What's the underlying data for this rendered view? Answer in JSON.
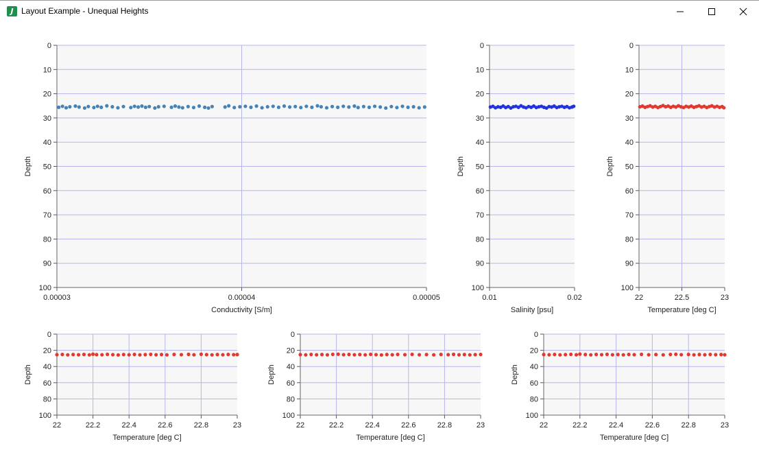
{
  "window": {
    "title": "Layout Example - Unequal Heights",
    "icon": "java-app-icon",
    "controls": [
      "minimize",
      "maximize",
      "close"
    ]
  },
  "chart_data": [
    {
      "type": "scatter",
      "xlabel": "Conductivity [S/m]",
      "ylabel": "Depth",
      "xlim": [
        3e-05,
        5e-05
      ],
      "ylim": [
        0,
        100
      ],
      "y_inverted": true,
      "xticks": [
        "0.00003",
        "0.00004",
        "0.00005"
      ],
      "yticks": [
        "0",
        "10",
        "20",
        "30",
        "40",
        "50",
        "60",
        "70",
        "80",
        "90",
        "100"
      ],
      "grid": true,
      "color": "#4682b4",
      "points": [
        [
          3.01e-05,
          25.6
        ],
        [
          3.03e-05,
          25.2
        ],
        [
          3.05e-05,
          25.8
        ],
        [
          3.07e-05,
          25.4
        ],
        [
          3.1e-05,
          25.1
        ],
        [
          3.12e-05,
          25.5
        ],
        [
          3.15e-05,
          25.9
        ],
        [
          3.17e-05,
          25.3
        ],
        [
          3.2e-05,
          25.7
        ],
        [
          3.22e-05,
          25.2
        ],
        [
          3.24e-05,
          25.6
        ],
        [
          3.27e-05,
          25.0
        ],
        [
          3.3e-05,
          25.4
        ],
        [
          3.33e-05,
          25.8
        ],
        [
          3.36e-05,
          25.3
        ],
        [
          3.4e-05,
          25.7
        ],
        [
          3.42e-05,
          25.2
        ],
        [
          3.44e-05,
          25.5
        ],
        [
          3.46e-05,
          25.1
        ],
        [
          3.48e-05,
          25.6
        ],
        [
          3.5e-05,
          25.3
        ],
        [
          3.53e-05,
          25.9
        ],
        [
          3.55e-05,
          25.4
        ],
        [
          3.58e-05,
          25.2
        ],
        [
          3.62e-05,
          25.6
        ],
        [
          3.64e-05,
          25.1
        ],
        [
          3.66e-05,
          25.5
        ],
        [
          3.68e-05,
          25.8
        ],
        [
          3.71e-05,
          25.3
        ],
        [
          3.74e-05,
          25.7
        ],
        [
          3.77e-05,
          25.1
        ],
        [
          3.8e-05,
          25.6
        ],
        [
          3.82e-05,
          25.9
        ],
        [
          3.84e-05,
          25.3
        ],
        [
          3.91e-05,
          25.5
        ],
        [
          3.93e-05,
          25.0
        ],
        [
          3.96e-05,
          25.7
        ],
        [
          3.99e-05,
          25.4
        ],
        [
          4.02e-05,
          25.2
        ],
        [
          4.05e-05,
          25.6
        ],
        [
          4.08e-05,
          25.1
        ],
        [
          4.11e-05,
          25.8
        ],
        [
          4.14e-05,
          25.4
        ],
        [
          4.17e-05,
          25.2
        ],
        [
          4.2e-05,
          25.6
        ],
        [
          4.23e-05,
          25.1
        ],
        [
          4.26e-05,
          25.5
        ],
        [
          4.29e-05,
          25.3
        ],
        [
          4.32e-05,
          25.7
        ],
        [
          4.35e-05,
          25.2
        ],
        [
          4.38e-05,
          25.6
        ],
        [
          4.41e-05,
          25.0
        ],
        [
          4.43e-05,
          25.4
        ],
        [
          4.46e-05,
          25.8
        ],
        [
          4.49e-05,
          25.3
        ],
        [
          4.52e-05,
          25.6
        ],
        [
          4.55e-05,
          25.2
        ],
        [
          4.58e-05,
          25.5
        ],
        [
          4.61e-05,
          25.1
        ],
        [
          4.63e-05,
          25.7
        ],
        [
          4.66e-05,
          25.3
        ],
        [
          4.69e-05,
          25.6
        ],
        [
          4.72e-05,
          25.2
        ],
        [
          4.75e-05,
          25.5
        ],
        [
          4.78e-05,
          25.9
        ],
        [
          4.81e-05,
          25.3
        ],
        [
          4.84e-05,
          25.7
        ],
        [
          4.87e-05,
          25.2
        ],
        [
          4.9e-05,
          25.6
        ],
        [
          4.93e-05,
          25.4
        ],
        [
          4.96e-05,
          25.8
        ],
        [
          4.99e-05,
          25.5
        ]
      ]
    },
    {
      "type": "scatter",
      "xlabel": "Salinity [psu]",
      "ylabel": "Depth",
      "xlim": [
        0.01,
        0.02
      ],
      "ylim": [
        0,
        100
      ],
      "y_inverted": true,
      "xticks": [
        "0.01",
        "0.02"
      ],
      "yticks": [
        "0",
        "10",
        "20",
        "30",
        "40",
        "50",
        "60",
        "70",
        "80",
        "90",
        "100"
      ],
      "grid": true,
      "color": "#2233dd",
      "points": [
        [
          0.0101,
          25.5
        ],
        [
          0.0104,
          25.2
        ],
        [
          0.0107,
          25.8
        ],
        [
          0.011,
          25.4
        ],
        [
          0.0113,
          25.6
        ],
        [
          0.0116,
          25.1
        ],
        [
          0.0119,
          25.7
        ],
        [
          0.0122,
          25.3
        ],
        [
          0.0125,
          25.9
        ],
        [
          0.0128,
          25.4
        ],
        [
          0.0131,
          25.2
        ],
        [
          0.0134,
          25.6
        ],
        [
          0.0137,
          25.0
        ],
        [
          0.014,
          25.5
        ],
        [
          0.0143,
          25.8
        ],
        [
          0.0146,
          25.3
        ],
        [
          0.0149,
          25.6
        ],
        [
          0.0152,
          25.1
        ],
        [
          0.0155,
          25.7
        ],
        [
          0.0158,
          25.4
        ],
        [
          0.0161,
          25.2
        ],
        [
          0.0164,
          25.6
        ],
        [
          0.0167,
          25.9
        ],
        [
          0.017,
          25.3
        ],
        [
          0.0173,
          25.5
        ],
        [
          0.0176,
          25.1
        ],
        [
          0.0179,
          25.7
        ],
        [
          0.0182,
          25.4
        ],
        [
          0.0185,
          25.2
        ],
        [
          0.0188,
          25.6
        ],
        [
          0.0191,
          25.3
        ],
        [
          0.0194,
          25.8
        ],
        [
          0.0197,
          25.5
        ],
        [
          0.0199,
          25.2
        ]
      ]
    },
    {
      "type": "scatter",
      "xlabel": "Temperature [deg C]",
      "ylabel": "Depth",
      "xlim": [
        22,
        23
      ],
      "ylim": [
        0,
        100
      ],
      "y_inverted": true,
      "xticks": [
        "22",
        "22.5",
        "23"
      ],
      "yticks": [
        "0",
        "10",
        "20",
        "30",
        "40",
        "50",
        "60",
        "70",
        "80",
        "90",
        "100"
      ],
      "grid": true,
      "color": "#e03a30",
      "points": [
        [
          22.01,
          25.4
        ],
        [
          22.04,
          25.1
        ],
        [
          22.07,
          25.6
        ],
        [
          22.1,
          25.3
        ],
        [
          22.13,
          25.0
        ],
        [
          22.16,
          25.5
        ],
        [
          22.19,
          25.2
        ],
        [
          22.22,
          25.7
        ],
        [
          22.25,
          25.3
        ],
        [
          22.28,
          24.9
        ],
        [
          22.31,
          25.4
        ],
        [
          22.34,
          25.1
        ],
        [
          22.37,
          25.6
        ],
        [
          22.4,
          25.2
        ],
        [
          22.43,
          25.5
        ],
        [
          22.46,
          25.0
        ],
        [
          22.49,
          25.4
        ],
        [
          22.52,
          25.7
        ],
        [
          22.55,
          25.2
        ],
        [
          22.58,
          25.5
        ],
        [
          22.61,
          25.1
        ],
        [
          22.64,
          25.6
        ],
        [
          22.67,
          25.3
        ],
        [
          22.7,
          25.0
        ],
        [
          22.73,
          25.5
        ],
        [
          22.76,
          25.2
        ],
        [
          22.79,
          25.7
        ],
        [
          22.82,
          25.3
        ],
        [
          22.85,
          25.0
        ],
        [
          22.88,
          25.5
        ],
        [
          22.91,
          25.2
        ],
        [
          22.94,
          25.6
        ],
        [
          22.97,
          25.3
        ],
        [
          22.99,
          25.8
        ]
      ]
    },
    {
      "type": "scatter",
      "xlabel": "Temperature [deg C]",
      "ylabel": "Depth",
      "xlim": [
        22,
        23
      ],
      "ylim": [
        0,
        100
      ],
      "y_inverted": true,
      "xticks": [
        "22",
        "22.2",
        "22.4",
        "22.6",
        "22.8",
        "23"
      ],
      "yticks": [
        "0",
        "20",
        "40",
        "60",
        "80",
        "100"
      ],
      "grid": true,
      "color": "#e03a30",
      "points": [
        [
          22.0,
          25.4
        ],
        [
          22.03,
          25.1
        ],
        [
          22.06,
          25.6
        ],
        [
          22.09,
          25.2
        ],
        [
          22.12,
          25.5
        ],
        [
          22.15,
          25.1
        ],
        [
          22.18,
          25.6
        ],
        [
          22.2,
          24.8
        ],
        [
          22.22,
          25.3
        ],
        [
          22.25,
          25.5
        ],
        [
          22.28,
          25.0
        ],
        [
          22.31,
          25.4
        ],
        [
          22.34,
          25.7
        ],
        [
          22.37,
          25.2
        ],
        [
          22.4,
          25.5
        ],
        [
          22.43,
          25.1
        ],
        [
          22.46,
          25.6
        ],
        [
          22.49,
          25.3
        ],
        [
          22.52,
          25.0
        ],
        [
          22.55,
          25.5
        ],
        [
          22.58,
          25.2
        ],
        [
          22.61,
          25.6
        ],
        [
          22.65,
          25.1
        ],
        [
          22.69,
          25.4
        ],
        [
          22.73,
          25.0
        ],
        [
          22.76,
          25.5
        ],
        [
          22.8,
          24.9
        ],
        [
          22.83,
          25.3
        ],
        [
          22.86,
          25.6
        ],
        [
          22.89,
          25.2
        ],
        [
          22.92,
          25.5
        ],
        [
          22.95,
          25.1
        ],
        [
          22.98,
          25.4
        ],
        [
          23.0,
          25.2
        ]
      ]
    },
    {
      "type": "scatter",
      "xlabel": "Temperature [deg C]",
      "ylabel": "Depth",
      "xlim": [
        22,
        23
      ],
      "ylim": [
        0,
        100
      ],
      "y_inverted": true,
      "xticks": [
        "22",
        "22.2",
        "22.4",
        "22.6",
        "22.8",
        "23"
      ],
      "yticks": [
        "0",
        "20",
        "40",
        "60",
        "80",
        "100"
      ],
      "grid": true,
      "color": "#e03a30",
      "points": [
        [
          22.0,
          25.3
        ],
        [
          22.03,
          25.6
        ],
        [
          22.06,
          25.1
        ],
        [
          22.09,
          25.5
        ],
        [
          22.12,
          25.2
        ],
        [
          22.15,
          25.6
        ],
        [
          22.18,
          25.0
        ],
        [
          22.21,
          24.8
        ],
        [
          22.24,
          25.4
        ],
        [
          22.27,
          25.1
        ],
        [
          22.3,
          25.5
        ],
        [
          22.33,
          25.2
        ],
        [
          22.36,
          25.6
        ],
        [
          22.39,
          25.0
        ],
        [
          22.42,
          25.4
        ],
        [
          22.45,
          25.7
        ],
        [
          22.48,
          25.2
        ],
        [
          22.51,
          25.5
        ],
        [
          22.54,
          25.1
        ],
        [
          22.58,
          25.4
        ],
        [
          22.62,
          25.0
        ],
        [
          22.66,
          25.5
        ],
        [
          22.7,
          25.2
        ],
        [
          22.74,
          25.6
        ],
        [
          22.78,
          25.1
        ],
        [
          22.82,
          25.4
        ],
        [
          22.85,
          25.0
        ],
        [
          22.88,
          25.5
        ],
        [
          22.91,
          25.2
        ],
        [
          22.94,
          25.6
        ],
        [
          22.97,
          25.3
        ],
        [
          23.0,
          25.1
        ]
      ]
    },
    {
      "type": "scatter",
      "xlabel": "Temperature [deg C]",
      "ylabel": "Depth",
      "xlim": [
        22,
        23
      ],
      "ylim": [
        0,
        100
      ],
      "y_inverted": true,
      "xticks": [
        "22",
        "22.2",
        "22.4",
        "22.6",
        "22.8",
        "23"
      ],
      "yticks": [
        "0",
        "20",
        "40",
        "60",
        "80",
        "100"
      ],
      "grid": true,
      "color": "#e03a30",
      "points": [
        [
          22.0,
          25.2
        ],
        [
          22.03,
          25.5
        ],
        [
          22.06,
          25.1
        ],
        [
          22.09,
          25.6
        ],
        [
          22.12,
          25.3
        ],
        [
          22.15,
          25.0
        ],
        [
          22.18,
          25.5
        ],
        [
          22.2,
          24.7
        ],
        [
          22.23,
          25.2
        ],
        [
          22.26,
          25.6
        ],
        [
          22.29,
          25.1
        ],
        [
          22.32,
          25.4
        ],
        [
          22.35,
          25.0
        ],
        [
          22.38,
          25.5
        ],
        [
          22.41,
          25.2
        ],
        [
          22.44,
          25.6
        ],
        [
          22.47,
          25.1
        ],
        [
          22.5,
          25.4
        ],
        [
          22.54,
          25.0
        ],
        [
          22.58,
          25.5
        ],
        [
          22.62,
          25.2
        ],
        [
          22.66,
          25.6
        ],
        [
          22.7,
          25.1
        ],
        [
          22.73,
          24.9
        ],
        [
          22.76,
          25.4
        ],
        [
          22.8,
          25.1
        ],
        [
          22.83,
          25.6
        ],
        [
          22.86,
          25.2
        ],
        [
          22.89,
          25.5
        ],
        [
          22.92,
          25.1
        ],
        [
          22.95,
          25.4
        ],
        [
          22.98,
          25.2
        ],
        [
          23.0,
          25.5
        ]
      ]
    }
  ]
}
